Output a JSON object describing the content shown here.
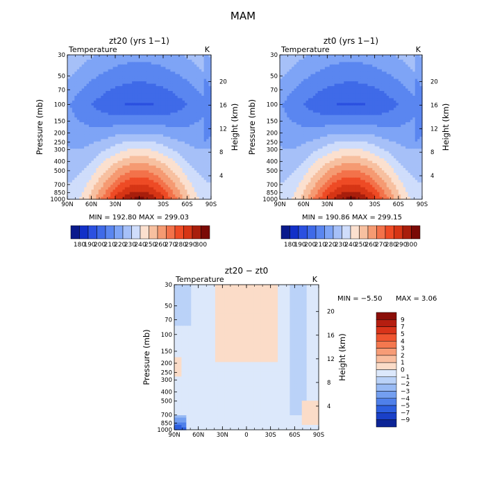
{
  "figure": {
    "title": "MAM"
  },
  "chart_data": [
    {
      "type": "heatmap",
      "title": "zt20 (yrs 1−1)",
      "field_label": "Temperature",
      "units_label": "K",
      "ylabel": "Pressure (mb)",
      "ylabel_right": "Height (km)",
      "x_ticks": [
        "90N",
        "60N",
        "30N",
        "0",
        "30S",
        "60S",
        "90S"
      ],
      "y_ticks": [
        "30",
        "50",
        "70",
        "100",
        "150",
        "200",
        "250",
        "300",
        "400",
        "500",
        "700",
        "850",
        "1000"
      ],
      "y_ticks_right": [
        "20",
        "16",
        "12",
        "8",
        "4"
      ],
      "stats": "MIN = 192.80   MAX = 299.03",
      "colorbar_labels": [
        "180",
        "190",
        "200",
        "210",
        "220",
        "230",
        "240",
        "250",
        "260",
        "270",
        "280",
        "290",
        "300"
      ],
      "colorbar_colors": [
        "#0a1a8c",
        "#1230c8",
        "#2b50e0",
        "#3f6ae8",
        "#5a86f0",
        "#7ea4f6",
        "#a6c0f8",
        "#cfddfb",
        "#fbe0cf",
        "#f7c0a0",
        "#f59a72",
        "#f3724a",
        "#ee4b25",
        "#d63515",
        "#a81e0c",
        "#7a0a06"
      ],
      "values_note": "Temperature (K); ~198 K minimum near 100 mb equator, ~297 K maximum near 1000 mb equator"
    },
    {
      "type": "heatmap",
      "title": "zt0 (yrs 1−1)",
      "field_label": "Temperature",
      "units_label": "K",
      "ylabel": "Pressure (mb)",
      "ylabel_right": "Height (km)",
      "x_ticks": [
        "90N",
        "60N",
        "30N",
        "0",
        "30S",
        "60S",
        "90S"
      ],
      "y_ticks": [
        "30",
        "50",
        "70",
        "100",
        "150",
        "200",
        "250",
        "300",
        "400",
        "500",
        "700",
        "850",
        "1000"
      ],
      "y_ticks_right": [
        "20",
        "16",
        "12",
        "8",
        "4"
      ],
      "stats": "MIN = 190.86   MAX = 299.15",
      "colorbar_labels": [
        "180",
        "190",
        "200",
        "210",
        "220",
        "230",
        "240",
        "250",
        "260",
        "270",
        "280",
        "290",
        "300"
      ],
      "colorbar_colors": [
        "#0a1a8c",
        "#1230c8",
        "#2b50e0",
        "#3f6ae8",
        "#5a86f0",
        "#7ea4f6",
        "#a6c0f8",
        "#cfddfb",
        "#fbe0cf",
        "#f7c0a0",
        "#f59a72",
        "#f3724a",
        "#ee4b25",
        "#d63515",
        "#a81e0c",
        "#7a0a06"
      ]
    },
    {
      "type": "heatmap",
      "title": "zt20 − zt0",
      "field_label": "Temperature",
      "units_label": "K",
      "ylabel": "Pressure (mb)",
      "ylabel_right": "Height (km)",
      "x_ticks": [
        "90N",
        "60N",
        "30N",
        "0",
        "30S",
        "60S",
        "90S"
      ],
      "y_ticks": [
        "30",
        "50",
        "70",
        "100",
        "150",
        "200",
        "250",
        "300",
        "400",
        "500",
        "700",
        "850",
        "1000"
      ],
      "y_ticks_right": [
        "20",
        "16",
        "12",
        "8",
        "4"
      ],
      "stats_min": "MIN =   −5.50",
      "stats_max": "MAX =    3.06",
      "colorbar_labels": [
        "9",
        "7",
        "5",
        "4",
        "3",
        "2",
        "1",
        "0",
        "−1",
        "−2",
        "−3",
        "−4",
        "−5",
        "−7",
        "−9"
      ],
      "colorbar_colors": [
        "#8b0e08",
        "#b51e10",
        "#d9341a",
        "#ef5530",
        "#f4784f",
        "#f79c76",
        "#f9bd9e",
        "#fbdcc8",
        "#dce8fb",
        "#bad2f8",
        "#98baf4",
        "#749ff0",
        "#4f80ea",
        "#2d5fdf",
        "#1a40c8",
        "#0c2496"
      ]
    }
  ]
}
